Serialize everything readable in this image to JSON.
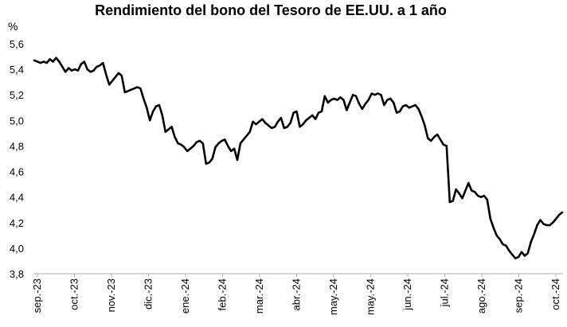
{
  "chart_data": {
    "type": "line",
    "title": "Rendimiento del bono del Tesoro de EE.UU. a 1 año",
    "ylabel": "%",
    "xlabel": "",
    "ylim": [
      3.8,
      5.6
    ],
    "y_ticks": [
      "3,8",
      "4,0",
      "4,2",
      "4,4",
      "4,6",
      "4,8",
      "5,0",
      "5,2",
      "5,4",
      "5,6"
    ],
    "x_ticks": [
      "sep.-23",
      "oct.-23",
      "nov.-23",
      "dic.-23",
      "ene.-24",
      "feb.-24",
      "mar.-24",
      "abr.-24",
      "may.-24",
      "may.-24",
      "jun.-24",
      "jul.-24",
      "ago.-24",
      "sep.-24",
      "oct.-24"
    ],
    "grid": false,
    "legend": "none",
    "line_color": "#000000",
    "series": [
      {
        "values": [
          5.47,
          5.46,
          5.45,
          5.46,
          5.45,
          5.48,
          5.46,
          5.49,
          5.46,
          5.42,
          5.38,
          5.41,
          5.39,
          5.4,
          5.39,
          5.44,
          5.46,
          5.4,
          5.38,
          5.39,
          5.42,
          5.43,
          5.45,
          5.36,
          5.28,
          5.31,
          5.34,
          5.37,
          5.35,
          5.22,
          5.23,
          5.24,
          5.25,
          5.26,
          5.25,
          5.17,
          5.1,
          5.0,
          5.07,
          5.11,
          5.12,
          5.04,
          4.91,
          4.93,
          4.95,
          4.87,
          4.82,
          4.81,
          4.79,
          4.76,
          4.78,
          4.8,
          4.83,
          4.84,
          4.82,
          4.66,
          4.67,
          4.7,
          4.79,
          4.82,
          4.84,
          4.85,
          4.8,
          4.76,
          4.78,
          4.69,
          4.82,
          4.85,
          4.88,
          4.91,
          4.99,
          4.97,
          4.99,
          5.01,
          4.98,
          4.96,
          4.94,
          4.95,
          4.99,
          5.02,
          4.94,
          4.95,
          4.98,
          5.06,
          5.07,
          4.95,
          4.97,
          5.0,
          5.02,
          5.04,
          5.01,
          5.06,
          5.07,
          5.19,
          5.14,
          5.16,
          5.17,
          5.16,
          5.18,
          5.16,
          5.08,
          5.14,
          5.2,
          5.19,
          5.13,
          5.09,
          5.13,
          5.16,
          5.21,
          5.2,
          5.21,
          5.2,
          5.12,
          5.16,
          5.17,
          5.14,
          5.06,
          5.07,
          5.11,
          5.12,
          5.1,
          5.11,
          5.12,
          5.09,
          5.03,
          4.96,
          4.86,
          4.84,
          4.87,
          4.89,
          4.85,
          4.81,
          4.8,
          4.36,
          4.37,
          4.46,
          4.43,
          4.39,
          4.45,
          4.51,
          4.45,
          4.44,
          4.41,
          4.4,
          4.41,
          4.38,
          4.23,
          4.16,
          4.1,
          4.07,
          4.03,
          4.02,
          3.98,
          3.95,
          3.92,
          3.93,
          3.97,
          3.94,
          3.96,
          4.05,
          4.11,
          4.18,
          4.22,
          4.19,
          4.18,
          4.18,
          4.2,
          4.23,
          4.26,
          4.28
        ]
      }
    ]
  }
}
